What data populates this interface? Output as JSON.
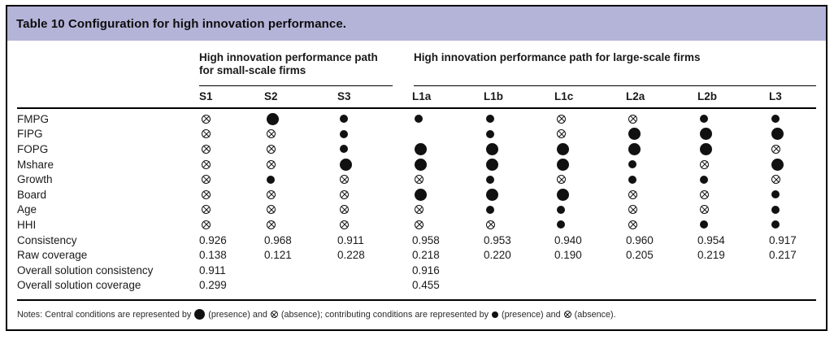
{
  "title": "Table 10 Configuration for high innovation performance.",
  "colors": {
    "title_band_background": "#b4b4d9",
    "frame_border": "#000000",
    "symbol_color": "#111111"
  },
  "table": {
    "groups": [
      {
        "label": "High innovation performance path for small-scale firms",
        "span": 3
      },
      {
        "label": "High innovation performance path for large-scale firms",
        "span": 6
      }
    ],
    "columns": [
      "S1",
      "S2",
      "S3",
      "L1a",
      "L1b",
      "L1c",
      "L2a",
      "L2b",
      "L3"
    ],
    "symbol_legend": {
      "P": "central-condition-presence-large-filled-circle",
      "p": "contributing-condition-presence-small-filled-circle",
      "x": "absence-crossed-circle",
      "": "blank"
    },
    "rows": [
      {
        "label": "FMPG",
        "cells": [
          "x",
          "P",
          "p",
          "p",
          "p",
          "x",
          "x",
          "p",
          "p"
        ]
      },
      {
        "label": "FIPG",
        "cells": [
          "x",
          "x",
          "p",
          "",
          "p",
          "x",
          "P",
          "P",
          "P"
        ]
      },
      {
        "label": "FOPG",
        "cells": [
          "x",
          "x",
          "p",
          "P",
          "P",
          "P",
          "P",
          "P",
          "x"
        ]
      },
      {
        "label": "Mshare",
        "cells": [
          "x",
          "x",
          "P",
          "P",
          "P",
          "P",
          "p",
          "x",
          "P"
        ]
      },
      {
        "label": "Growth",
        "cells": [
          "x",
          "p",
          "x",
          "x",
          "p",
          "x",
          "p",
          "p",
          "x"
        ]
      },
      {
        "label": "Board",
        "cells": [
          "x",
          "x",
          "x",
          "P",
          "P",
          "P",
          "x",
          "x",
          "p"
        ]
      },
      {
        "label": "Age",
        "cells": [
          "x",
          "x",
          "x",
          "x",
          "p",
          "p",
          "x",
          "x",
          "p"
        ]
      },
      {
        "label": "HHI",
        "cells": [
          "x",
          "x",
          "x",
          "x",
          "x",
          "p",
          "x",
          "p",
          "p"
        ]
      },
      {
        "label": "Consistency",
        "cells": [
          "0.926",
          "0.968",
          "0.911",
          "0.958",
          "0.953",
          "0.940",
          "0.960",
          "0.954",
          "0.917"
        ]
      },
      {
        "label": "Raw coverage",
        "cells": [
          "0.138",
          "0.121",
          "0.228",
          "0.218",
          "0.220",
          "0.190",
          "0.205",
          "0.219",
          "0.217"
        ]
      },
      {
        "label": "Overall solution consistency",
        "cells": [
          "0.911",
          "",
          "",
          "0.916",
          "",
          "",
          "",
          "",
          ""
        ]
      },
      {
        "label": "Overall solution coverage",
        "cells": [
          "0.299",
          "",
          "",
          "0.455",
          "",
          "",
          "",
          "",
          ""
        ]
      }
    ]
  },
  "notes": {
    "prefix": "Notes: Central conditions are represented by",
    "seg1": "(presence) and",
    "seg2": "(absence); contributing conditions are represented by",
    "seg3": "(presence) and",
    "suffix": "(absence)."
  }
}
